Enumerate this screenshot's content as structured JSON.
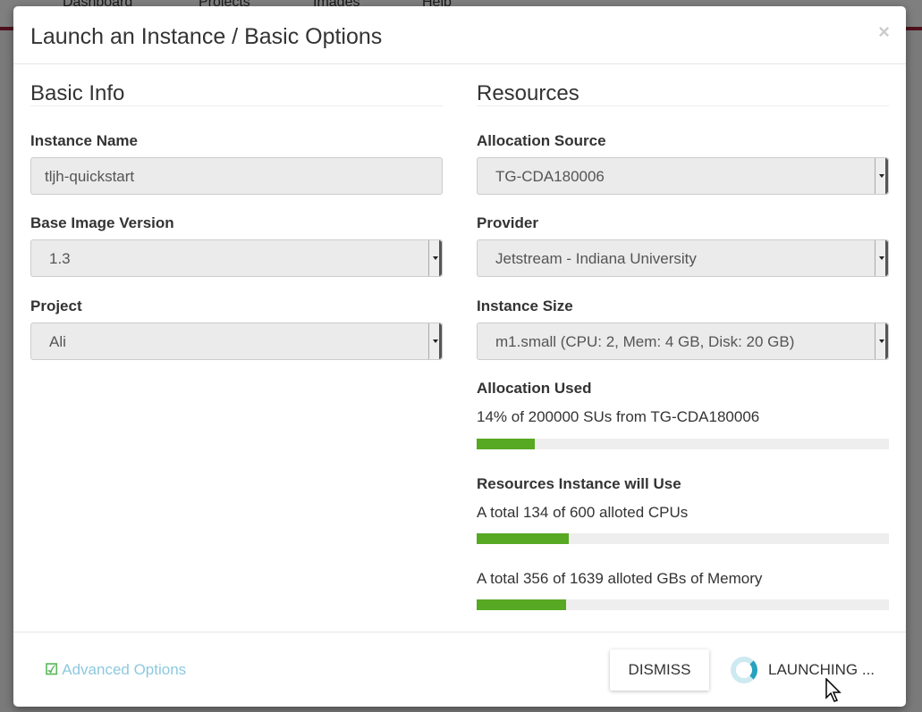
{
  "background": {
    "nav": [
      "Dashboard",
      "Projects",
      "Images",
      "Help"
    ]
  },
  "modal": {
    "title": "Launch an Instance / Basic Options",
    "close": "×",
    "basic": {
      "heading": "Basic Info",
      "instance_name_label": "Instance Name",
      "instance_name_value": "tljh-quickstart",
      "version_label": "Base Image Version",
      "version_value": "1.3",
      "project_label": "Project",
      "project_value": "Ali"
    },
    "resources": {
      "heading": "Resources",
      "alloc_source_label": "Allocation Source",
      "alloc_source_value": "TG-CDA180006",
      "provider_label": "Provider",
      "provider_value": "Jetstream - Indiana University",
      "size_label": "Instance Size",
      "size_value": "m1.small (CPU: 2, Mem: 4 GB, Disk: 20 GB)",
      "alloc_used_label": "Allocation Used",
      "alloc_used_text": "14% of 200000 SUs from TG-CDA180006",
      "alloc_used_pct": 14,
      "will_use_label": "Resources Instance will Use",
      "cpu_text": "A total 134 of 600 alloted CPUs",
      "cpu_pct": 22.3,
      "mem_text": "A total 356 of 1639 alloted GBs of Memory",
      "mem_pct": 21.7
    },
    "footer": {
      "advanced": "Advanced Options",
      "dismiss": "DISMISS",
      "launching": "LAUNCHING ..."
    }
  },
  "colors": {
    "progress": "#57a822",
    "accent": "#27a2be"
  }
}
